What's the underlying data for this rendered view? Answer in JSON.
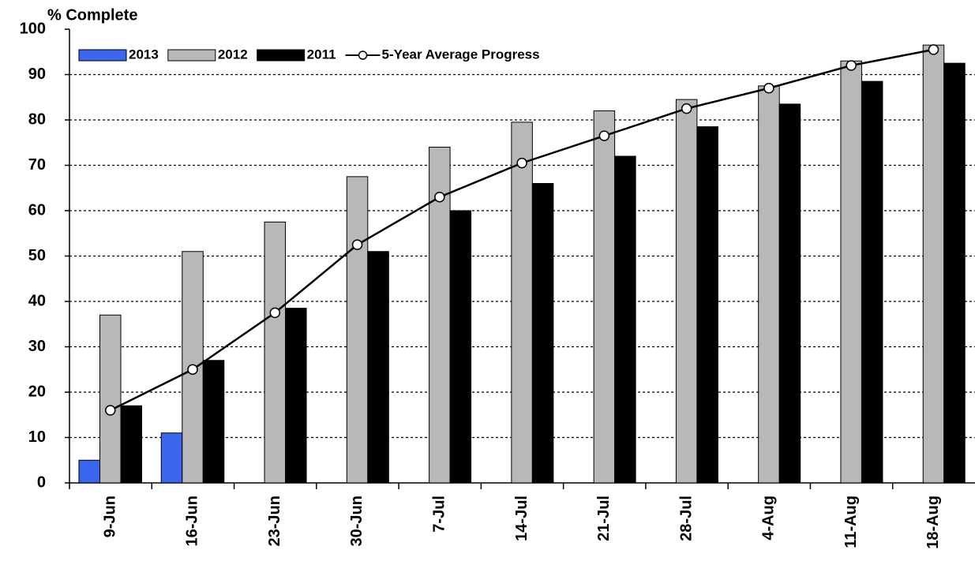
{
  "chart_data": {
    "type": "bar",
    "title": "% Complete",
    "categories": [
      "9-Jun",
      "16-Jun",
      "23-Jun",
      "30-Jun",
      "7-Jul",
      "14-Jul",
      "21-Jul",
      "28-Jul",
      "4-Aug",
      "11-Aug",
      "18-Aug"
    ],
    "series": [
      {
        "name": "2013",
        "color": "#3a66f0",
        "values": [
          5,
          11,
          null,
          null,
          null,
          null,
          null,
          null,
          null,
          null,
          null
        ]
      },
      {
        "name": "2012",
        "color": "#b8b8b8",
        "values": [
          37,
          51,
          57.5,
          67.5,
          74,
          79.5,
          82,
          84.5,
          87.5,
          93,
          96.5
        ]
      },
      {
        "name": "2011",
        "color": "#000000",
        "values": [
          17,
          27,
          38.5,
          51,
          60,
          66,
          72,
          78.5,
          83.5,
          88.5,
          92.5
        ]
      },
      {
        "name": "5-Year Average Progress",
        "type": "line",
        "color": "#000000",
        "values": [
          16,
          25,
          37.5,
          52.5,
          63,
          70.5,
          76.5,
          82.5,
          87,
          92,
          95.5
        ]
      }
    ],
    "ylim": [
      0,
      100
    ],
    "yticks": [
      0,
      10,
      20,
      30,
      40,
      50,
      60,
      70,
      80,
      90,
      100
    ],
    "grid": true
  }
}
